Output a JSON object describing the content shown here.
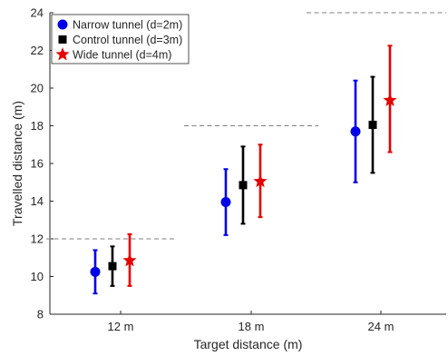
{
  "chart_data": {
    "type": "scatter",
    "xlabel": "Target distance (m)",
    "ylabel": "Travelled distance (m)",
    "ylim": [
      8,
      24
    ],
    "yticks": [
      8,
      10,
      12,
      14,
      16,
      18,
      20,
      22,
      24
    ],
    "categories": [
      "12 m",
      "18 m",
      "24 m"
    ],
    "grid": false,
    "legend_position": "top-left",
    "reference_lines": [
      {
        "category": "12 m",
        "value": 12
      },
      {
        "category": "18 m",
        "value": 18
      },
      {
        "category": "24 m",
        "value": 24
      }
    ],
    "series": [
      {
        "name": "Narrow tunnel (d=2m)",
        "marker": "circle",
        "color": "#0000e6",
        "means": [
          10.25,
          13.95,
          17.7
        ],
        "lower": [
          9.1,
          12.2,
          15.0
        ],
        "upper": [
          11.4,
          15.7,
          20.4
        ]
      },
      {
        "name": "Control tunnel (d=3m)",
        "marker": "square",
        "color": "#000000",
        "means": [
          10.55,
          14.85,
          18.05
        ],
        "lower": [
          9.5,
          12.8,
          15.5
        ],
        "upper": [
          11.6,
          16.9,
          20.6
        ]
      },
      {
        "name": "Wide tunnel (d=4m)",
        "marker": "star",
        "color": "#e60000",
        "means": [
          10.85,
          15.05,
          19.35
        ],
        "lower": [
          9.5,
          13.15,
          16.6
        ],
        "upper": [
          12.25,
          17.0,
          22.25
        ]
      }
    ]
  }
}
